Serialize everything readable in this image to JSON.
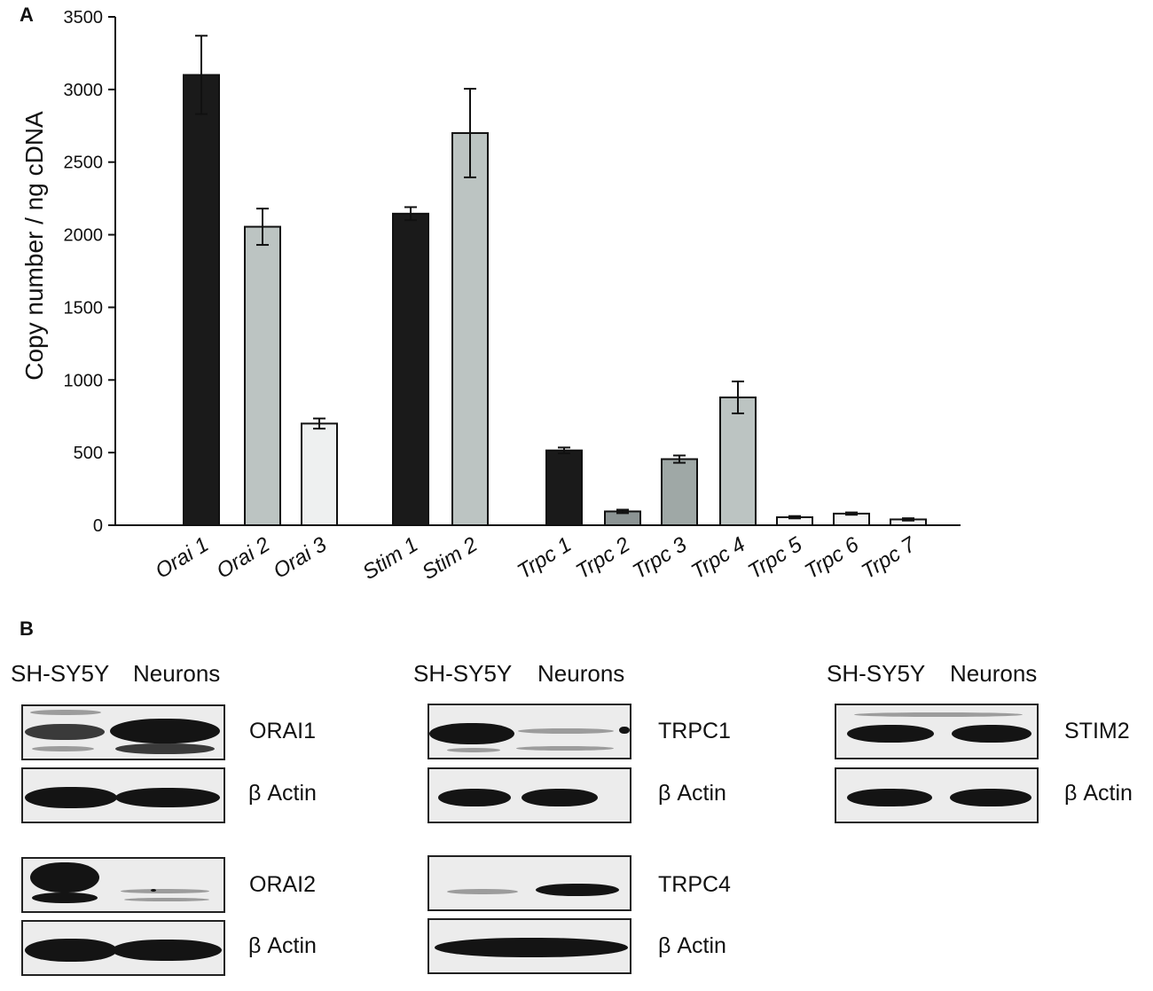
{
  "panel_a_label": "A",
  "panel_b_label": "B",
  "chart_data": {
    "type": "bar",
    "ylabel": "Copy number / ng cDNA",
    "xlabel": "",
    "ylim": [
      0,
      3500
    ],
    "y_ticks": [
      0,
      500,
      1000,
      1500,
      2000,
      2500,
      3000,
      3500
    ],
    "categories": [
      "Orai 1",
      "Orai 2",
      "Orai 3",
      "Stim 1",
      "Stim 2",
      "Trpc 1",
      "Trpc 2",
      "Trpc 3",
      "Trpc 4",
      "Trpc 5",
      "Trpc 6",
      "Trpc 7"
    ],
    "values": [
      3100,
      2055,
      700,
      2145,
      2700,
      515,
      95,
      455,
      880,
      55,
      80,
      40
    ],
    "errors": [
      270,
      125,
      35,
      45,
      305,
      20,
      12,
      25,
      110,
      8,
      8,
      8
    ],
    "colors": [
      "#1a1a1a",
      "#bcc4c2",
      "#eef0f0",
      "#1a1a1a",
      "#bcc4c2",
      "#1a1a1a",
      "#8c9494",
      "#9fa8a6",
      "#bcc4c2",
      "#f4f4f4",
      "#f4f4f4",
      "#f4f4f4"
    ],
    "grid": false,
    "legend": "none"
  },
  "blots": {
    "column_header_left": "SH-SY5Y",
    "column_header_right": "Neurons",
    "orai1": "ORAI1",
    "orai2": "ORAI2",
    "trpc1": "TRPC1",
    "trpc4": "TRPC4",
    "stim2": "STIM2",
    "actin": "β Actin"
  }
}
